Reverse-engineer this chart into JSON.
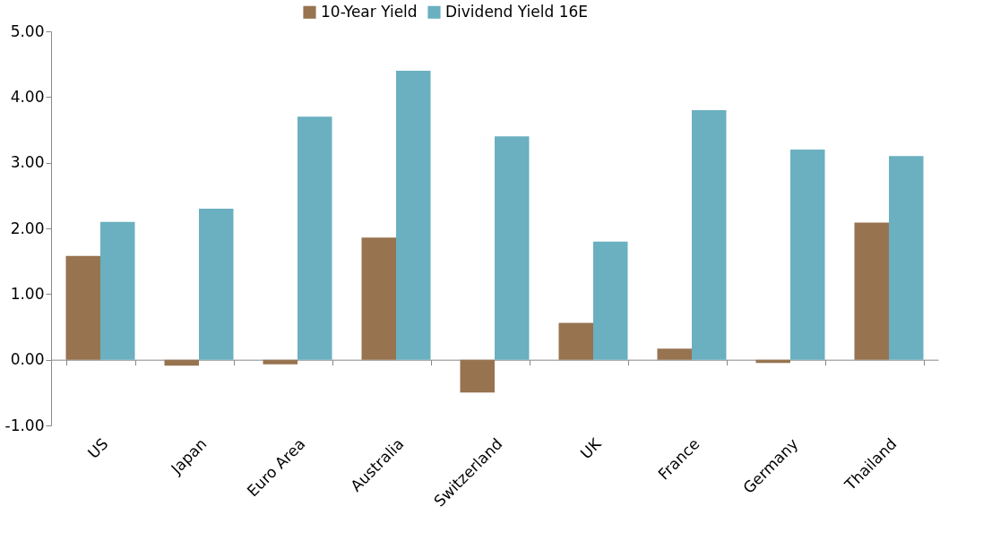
{
  "chart_data": {
    "type": "bar",
    "categories": [
      "US",
      "Japan",
      "Euro Area",
      "Australia",
      "Switzerland",
      "UK",
      "France",
      "Germany",
      "Thailand"
    ],
    "series": [
      {
        "name": "10-Year Yield",
        "color": "#977350",
        "values": [
          1.58,
          -0.09,
          -0.07,
          1.86,
          -0.5,
          0.56,
          0.17,
          -0.05,
          2.09
        ]
      },
      {
        "name": "Dividend Yield 16E",
        "color": "#6ab0c0",
        "values": [
          2.1,
          2.3,
          3.7,
          4.4,
          3.4,
          1.8,
          3.8,
          3.2,
          3.1
        ]
      }
    ],
    "ylim": [
      -1,
      5
    ],
    "yticks": [
      {
        "value": -1,
        "label": "-1.00"
      },
      {
        "value": 0,
        "label": "0.00"
      },
      {
        "value": 1,
        "label": "1.00"
      },
      {
        "value": 2,
        "label": "2.00"
      },
      {
        "value": 3,
        "label": "3.00"
      },
      {
        "value": 4,
        "label": "4.00"
      },
      {
        "value": 5,
        "label": "5.00"
      }
    ],
    "legend": "top"
  }
}
